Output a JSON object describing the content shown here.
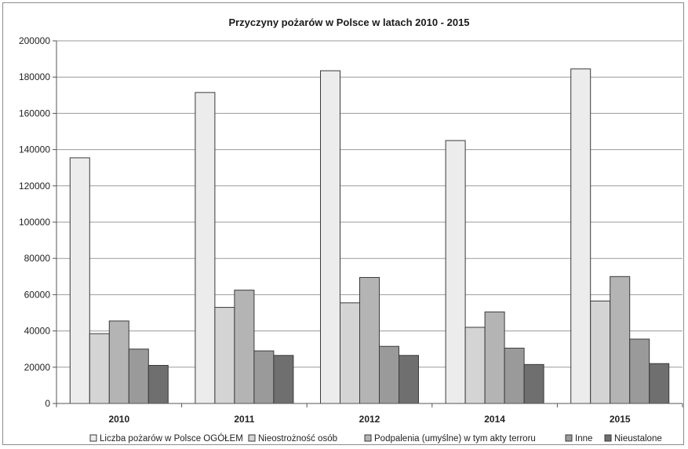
{
  "chart_data": {
    "type": "bar",
    "title": "Przyczyny pożarów w Polsce w latach 2010 - 2015",
    "categories": [
      "2010",
      "2011",
      "2012",
      "2014",
      "2015"
    ],
    "series": [
      {
        "name": "Liczba pożarów w Polsce OGÓŁEM",
        "color": "#ececec",
        "values": [
          135500,
          171500,
          183500,
          145000,
          184500
        ]
      },
      {
        "name": "Nieostrożność osób",
        "color": "#d4d4d4",
        "values": [
          38500,
          53000,
          55500,
          42000,
          56500
        ]
      },
      {
        "name": "Podpalenia (umyślne) w tym akty terroru",
        "color": "#b4b4b4",
        "values": [
          45500,
          62500,
          69500,
          50500,
          70000
        ]
      },
      {
        "name": "Inne",
        "color": "#9a9a9a",
        "values": [
          30000,
          29000,
          31500,
          30500,
          35500
        ]
      },
      {
        "name": "Nieustalone",
        "color": "#6f6f6f",
        "values": [
          21000,
          26500,
          26500,
          21500,
          22000
        ]
      }
    ],
    "ylim": [
      0,
      200000
    ],
    "yticks": [
      "0",
      "20000",
      "40000",
      "60000",
      "80000",
      "100000",
      "120000",
      "140000",
      "160000",
      "180000",
      "200000"
    ],
    "grid": true,
    "legend_position": "bottom"
  }
}
